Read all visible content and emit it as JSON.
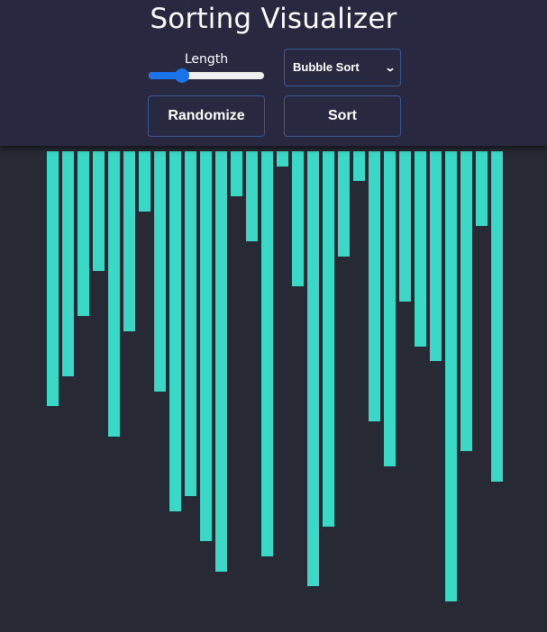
{
  "header": {
    "title": "Sorting Visualizer",
    "slider": {
      "label": "Length",
      "value_fraction": 0.29
    },
    "algorithm_select": {
      "selected": "Bubble Sort",
      "icon": "chevron-down-icon"
    },
    "randomize_label": "Randomize",
    "sort_label": "Sort"
  },
  "colors": {
    "header_bg": "#282841",
    "page_bg": "#272a34",
    "bar": "#3ad8c7",
    "button_border": "#3a5a8e",
    "slider_accent": "#1a73e8"
  },
  "bars": [
    283,
    250,
    183,
    133,
    317,
    200,
    67,
    267,
    400,
    383,
    433,
    467,
    50,
    100,
    450,
    17,
    150,
    483,
    417,
    117,
    33,
    300,
    350,
    167,
    217,
    233,
    500,
    333,
    83,
    367
  ]
}
